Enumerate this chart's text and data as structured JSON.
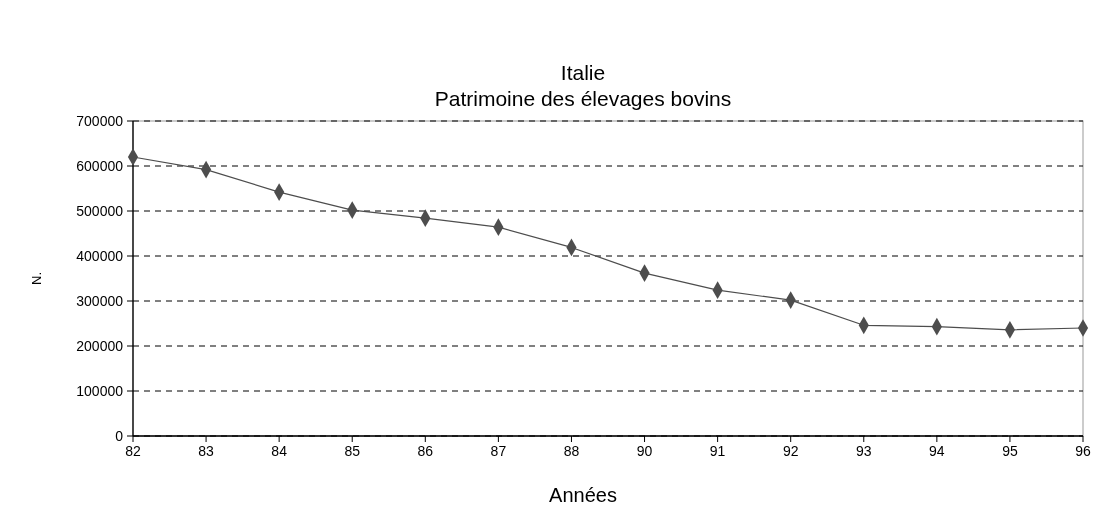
{
  "chart_data": {
    "type": "line",
    "title": "Italie",
    "subtitle": "Patrimoine des élevages bovins",
    "xlabel": "Années",
    "ylabel": "N.",
    "categories": [
      "82",
      "83",
      "84",
      "85",
      "86",
      "87",
      "88",
      "90",
      "91",
      "92",
      "93",
      "94",
      "95",
      "96"
    ],
    "series": [
      {
        "color": "#4d4d4d",
        "values": [
          620000,
          592000,
          542000,
          502000,
          484000,
          464000,
          419000,
          362000,
          324000,
          302000,
          246000,
          243000,
          236000,
          240000
        ]
      }
    ],
    "ylim": [
      0,
      700000
    ],
    "yticks": [
      0,
      100000,
      200000,
      300000,
      400000,
      500000,
      600000,
      700000
    ],
    "grid": "y",
    "marker": "diamond",
    "line_style": "solid"
  }
}
